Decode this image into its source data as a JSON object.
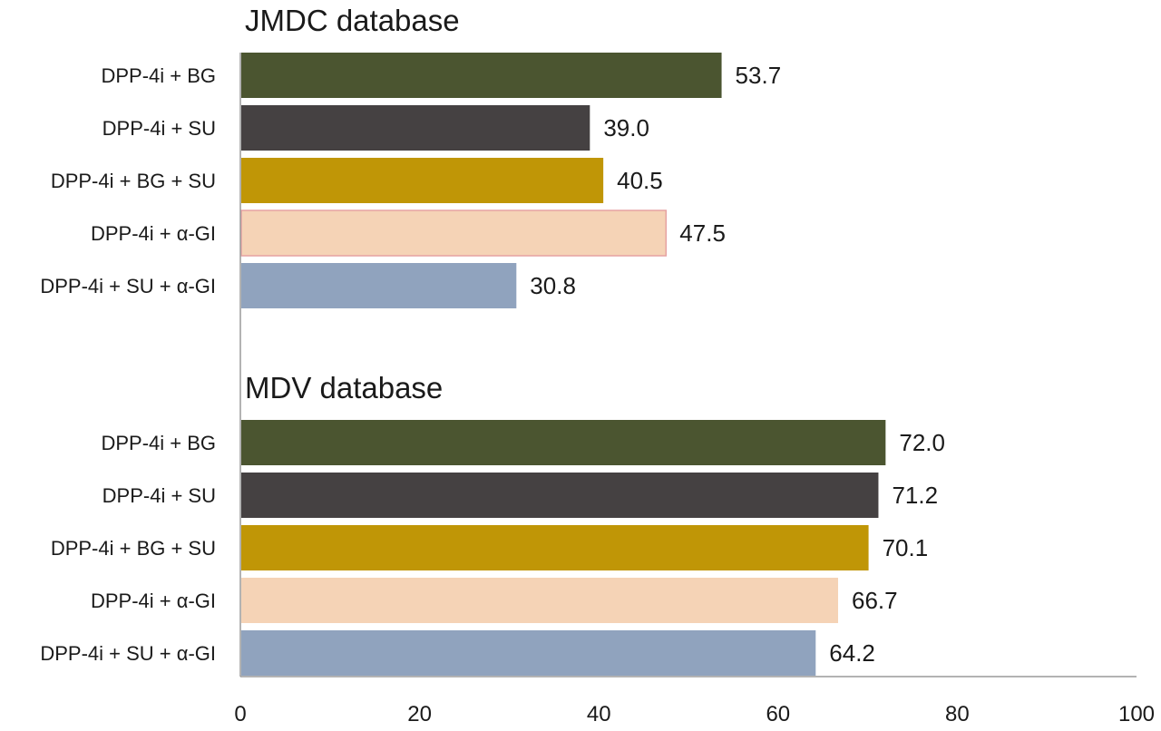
{
  "chart_data": {
    "type": "bar",
    "orientation": "horizontal",
    "xlim": [
      0,
      100
    ],
    "x_ticks": [
      "0",
      "20",
      "40",
      "60",
      "80",
      "100"
    ],
    "grid": false,
    "panels": [
      {
        "title": "JMDC database",
        "categories": [
          "DPP-4i + BG",
          "DPP-4i + SU",
          "DPP-4i + BG + SU",
          "DPP-4i + α-GI",
          "DPP-4i + SU + α-GI"
        ],
        "values": [
          53.7,
          39.0,
          40.5,
          47.5,
          30.8
        ],
        "value_labels": [
          "53.7",
          "39.0",
          "40.5",
          "47.5",
          "30.8"
        ]
      },
      {
        "title": "MDV database",
        "categories": [
          "DPP-4i + BG",
          "DPP-4i + SU",
          "DPP-4i + BG + SU",
          "DPP-4i + α-GI",
          "DPP-4i + SU + α-GI"
        ],
        "values": [
          72.0,
          71.2,
          70.1,
          66.7,
          64.2
        ],
        "value_labels": [
          "72.0",
          "71.2",
          "70.1",
          "66.7",
          "64.2"
        ]
      }
    ],
    "colors": [
      "#4b5530",
      "#454142",
      "#c09606",
      "#f5d3b6",
      "#90a3be"
    ],
    "bar_outline": "#e6a2a2"
  }
}
